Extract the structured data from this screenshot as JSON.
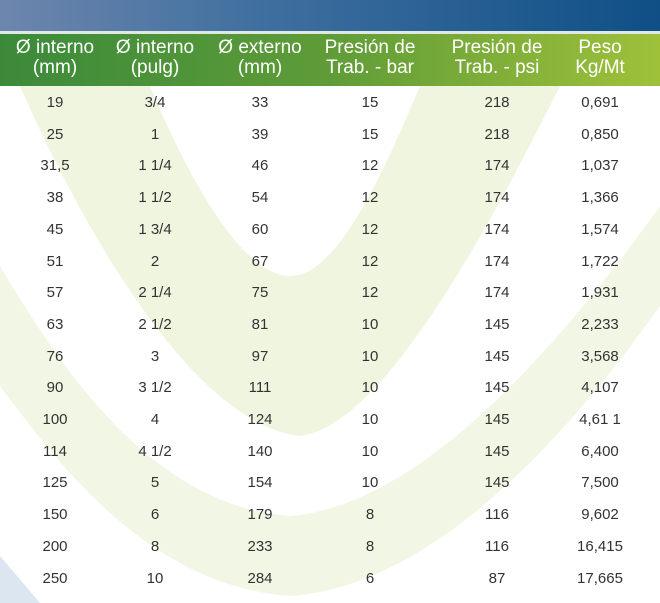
{
  "headers": [
    {
      "line1": "Ø interno",
      "line2": "(mm)"
    },
    {
      "line1": "Ø interno",
      "line2": "(pulg)"
    },
    {
      "line1": "Ø externo",
      "line2": "(mm)"
    },
    {
      "line1": "Presión de",
      "line2": "Trab. - bar"
    },
    {
      "line1": "Presión de",
      "line2": "Trab. - psi"
    },
    {
      "line1": "Peso",
      "line2": "Kg/Mt"
    }
  ],
  "rows": [
    [
      "19",
      "3/4",
      "33",
      "15",
      "218",
      "0,691"
    ],
    [
      "25",
      "1",
      "39",
      "15",
      "218",
      "0,850"
    ],
    [
      "31,5",
      "1 1/4",
      "46",
      "12",
      "174",
      "1,037"
    ],
    [
      "38",
      "1 1/2",
      "54",
      "12",
      "174",
      "1,366"
    ],
    [
      "45",
      "1 3/4",
      "60",
      "12",
      "174",
      "1,574"
    ],
    [
      "51",
      "2",
      "67",
      "12",
      "174",
      "1,722"
    ],
    [
      "57",
      "2 1/4",
      "75",
      "12",
      "174",
      "1,931"
    ],
    [
      "63",
      "2  1/2",
      "81",
      "10",
      "145",
      "2,233"
    ],
    [
      "76",
      "3",
      "97",
      "10",
      "145",
      "3,568"
    ],
    [
      "90",
      "3  1/2",
      "111",
      "10",
      "145",
      "4,107"
    ],
    [
      "100",
      "4",
      "124",
      "10",
      "145",
      "4,61 1"
    ],
    [
      "114",
      "4 1/2",
      "140",
      "10",
      "145",
      "6,400"
    ],
    [
      "125",
      "5",
      "154",
      "10",
      "145",
      "7,500"
    ],
    [
      "150",
      "6",
      "179",
      "8",
      "116",
      "9,602"
    ],
    [
      "200",
      "8",
      "233",
      "8",
      "116",
      "16,415"
    ],
    [
      "250",
      "10",
      "284",
      "6",
      "87",
      "17,665"
    ]
  ]
}
